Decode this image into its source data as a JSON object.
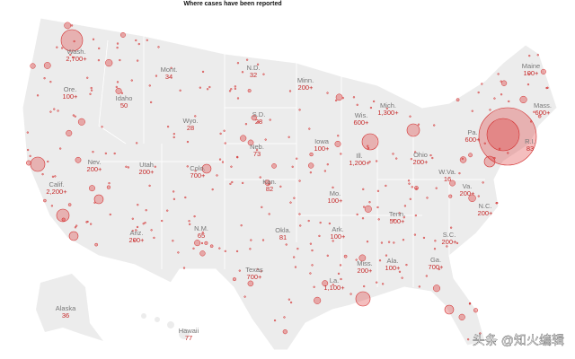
{
  "title": "Where cases have been reported",
  "states": [
    {
      "name": "Wash.",
      "count": "2,700+"
    },
    {
      "name": "Ore.",
      "count": "100+"
    },
    {
      "name": "Idaho",
      "count": "50"
    },
    {
      "name": "Mont.",
      "count": "34"
    },
    {
      "name": "N.D.",
      "count": "32"
    },
    {
      "name": "Minn.",
      "count": "200+"
    },
    {
      "name": "Wis.",
      "count": "600+"
    },
    {
      "name": "Mich.",
      "count": "1,300+"
    },
    {
      "name": "Maine",
      "count": "100+"
    },
    {
      "name": "Mass.",
      "count": "600+"
    },
    {
      "name": "R.I.",
      "count": "83"
    },
    {
      "name": "Pa.",
      "count": "600+"
    },
    {
      "name": "Wyo.",
      "count": "28"
    },
    {
      "name": "S.D.",
      "count": "28"
    },
    {
      "name": "Neb.",
      "count": "73"
    },
    {
      "name": "Iowa",
      "count": "100+"
    },
    {
      "name": "Ill.",
      "count": "1,200+"
    },
    {
      "name": "Ohio",
      "count": "200+"
    },
    {
      "name": "W.Va.",
      "count": "16"
    },
    {
      "name": "Va.",
      "count": "200+"
    },
    {
      "name": "Nev.",
      "count": "200+"
    },
    {
      "name": "Utah",
      "count": "200+"
    },
    {
      "name": "Colo.",
      "count": "700+"
    },
    {
      "name": "Kan.",
      "count": "82"
    },
    {
      "name": "Mo.",
      "count": "100+"
    },
    {
      "name": "Calif.",
      "count": "2,200+"
    },
    {
      "name": "N.C.",
      "count": "200+"
    },
    {
      "name": "Tenn.",
      "count": "500+"
    },
    {
      "name": "Okla.",
      "count": "81"
    },
    {
      "name": "Ark.",
      "count": "100+"
    },
    {
      "name": "N.M.",
      "count": "65"
    },
    {
      "name": "Ariz.",
      "count": "200+"
    },
    {
      "name": "S.C.",
      "count": "200+"
    },
    {
      "name": "Ga.",
      "count": "700+"
    },
    {
      "name": "Miss.",
      "count": "200+"
    },
    {
      "name": "Ala.",
      "count": "100+"
    },
    {
      "name": "Texas",
      "count": "700+"
    },
    {
      "name": "La.",
      "count": "1,100+"
    },
    {
      "name": "Alaska",
      "count": "36"
    },
    {
      "name": "Hawaii",
      "count": "77"
    }
  ],
  "watermark": "头条 @知火编辑"
}
